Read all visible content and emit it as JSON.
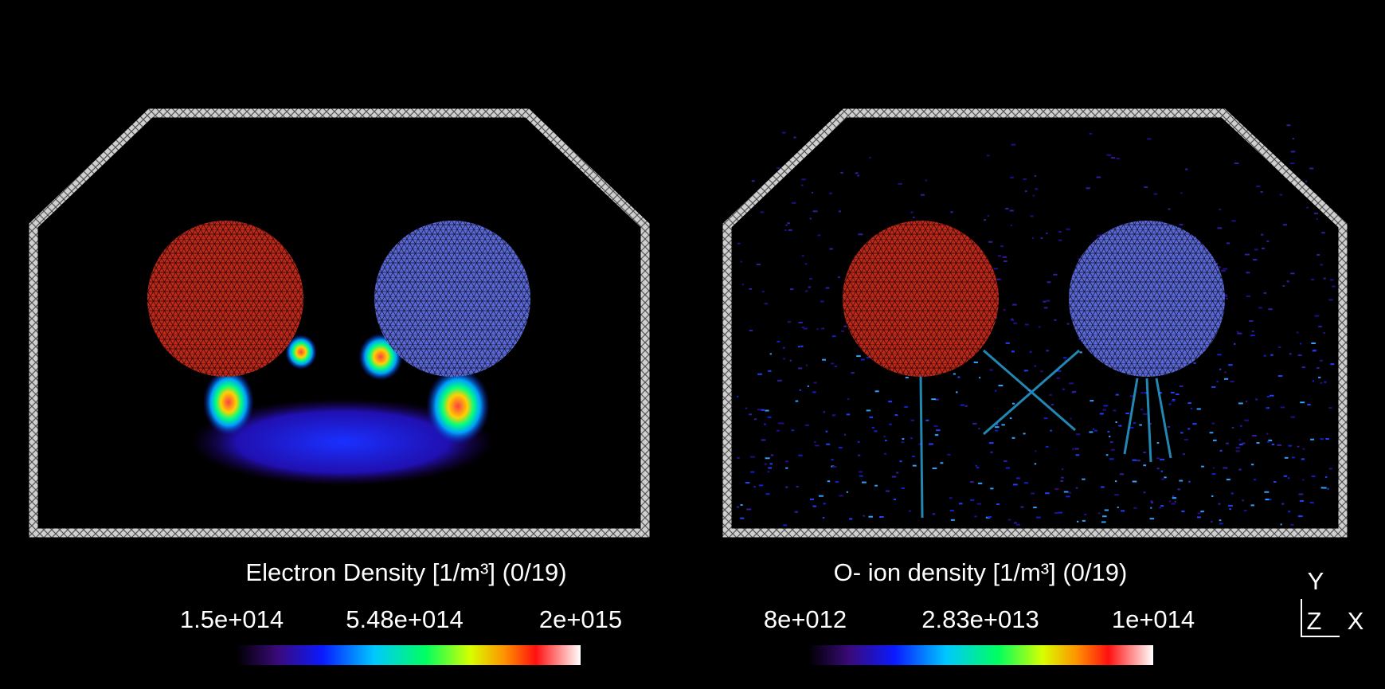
{
  "panels": [
    {
      "title": "Electron Density [1/m³] (0/19)",
      "colorbar_labels": [
        "1.5e+014",
        "5.48e+014",
        "2e+015"
      ]
    },
    {
      "title": "O- ion density [1/m³] (0/19)",
      "colorbar_labels": [
        "8e+012",
        "2.83e+013",
        "1e+014"
      ]
    }
  ],
  "axes_triad": {
    "y": "Y",
    "z": "Z",
    "x": "X"
  }
}
